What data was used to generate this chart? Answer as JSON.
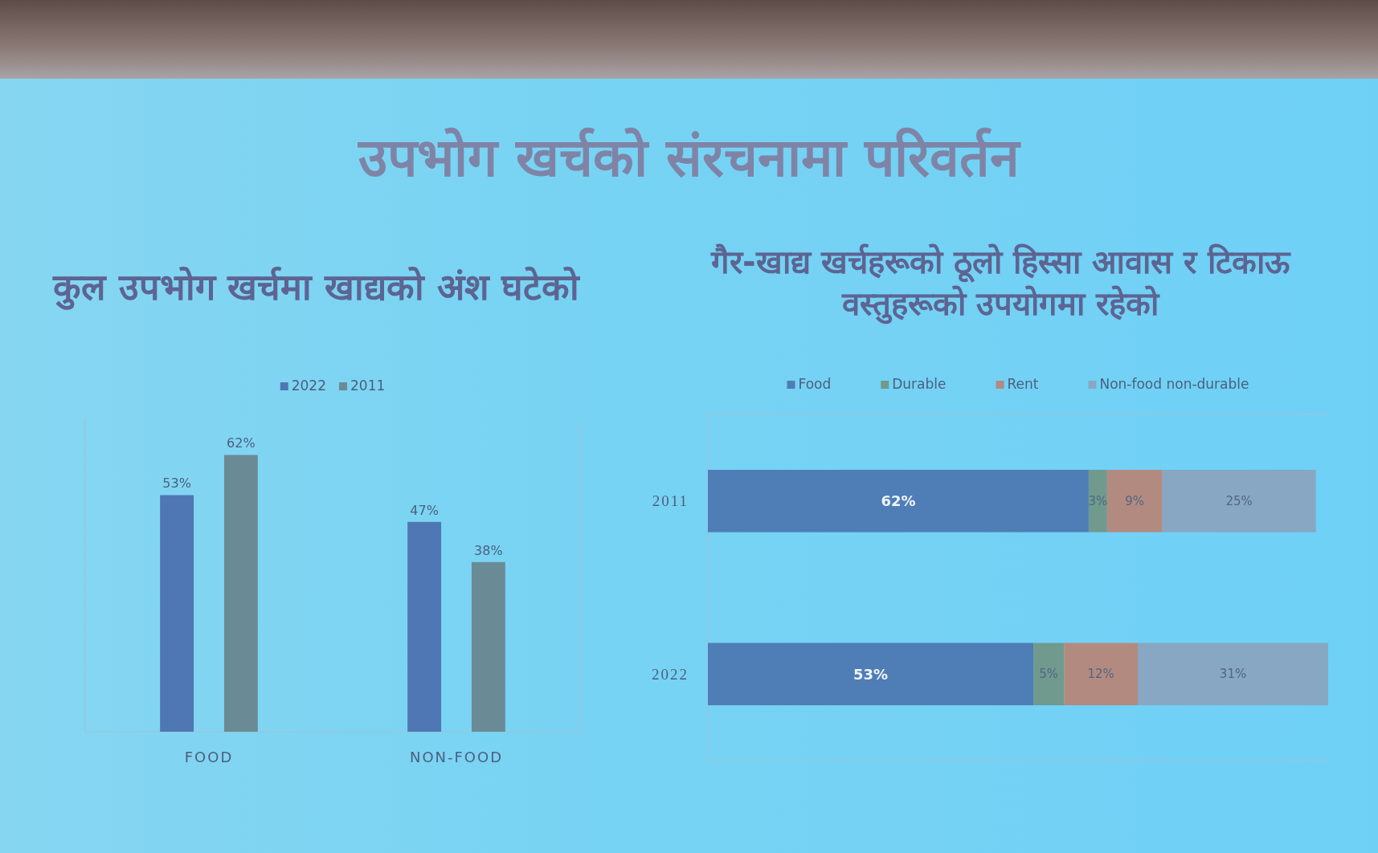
{
  "chart_data": [
    {
      "type": "other",
      "title": "उपभोग खर्चको संरचनामा परिवर्तन"
    },
    {
      "type": "bar",
      "title": "कुल उपभोग खर्चमा खाद्यको अंश घटेको",
      "categories": [
        "FOOD",
        "NON-FOOD"
      ],
      "series": [
        {
          "name": "2022",
          "color": "#4f77b3",
          "values": [
            53,
            47
          ],
          "value_labels": [
            "53%",
            "47%"
          ]
        },
        {
          "name": "2011",
          "color": "#6a8b95",
          "values": [
            62,
            38
          ],
          "value_labels": [
            "62%",
            "38%"
          ]
        }
      ],
      "ylim": [
        0,
        70
      ],
      "tick_labels": "x",
      "grid": "x",
      "legend": "top"
    },
    {
      "type": "bar",
      "orientation": "horizontal",
      "stacked": true,
      "title": "गैर-खाद्य खर्चहरूको ठूलो हिस्सा आवास र टिकाऊ वस्तुहरूको उपयोगमा रहेको",
      "categories": [
        "2011",
        "2022"
      ],
      "series": [
        {
          "name": "Food",
          "color": "#4f7db6",
          "values": [
            62,
            53
          ],
          "value_labels": [
            "62%",
            "53%"
          ]
        },
        {
          "name": "Durable",
          "color": "#709a8e",
          "values": [
            3,
            5
          ],
          "value_labels": [
            "3%",
            "5%"
          ]
        },
        {
          "name": "Rent",
          "color": "#b38a80",
          "values": [
            9,
            12
          ],
          "value_labels": [
            "9%",
            "12%"
          ]
        },
        {
          "name": "Non-food non-durable",
          "color": "#88a7c2",
          "values": [
            25,
            31
          ],
          "value_labels": [
            "25%",
            "31%"
          ]
        }
      ],
      "xlim": [
        0,
        101
      ],
      "tick_labels": "y",
      "grid": "y",
      "legend": "top"
    }
  ]
}
